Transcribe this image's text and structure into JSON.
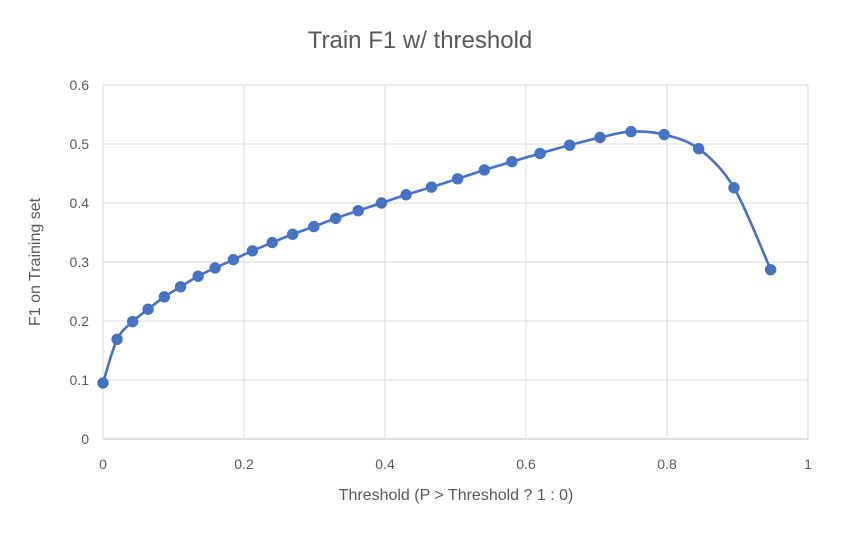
{
  "chart_data": {
    "type": "line",
    "title": "Train F1 w/ threshold",
    "xlabel": "Threshold (P > Threshold ? 1 : 0)",
    "ylabel": "F1 on Training set",
    "xlim": [
      0,
      1
    ],
    "ylim": [
      0,
      0.6
    ],
    "xticks": [
      "0",
      "0.2",
      "0.4",
      "0.6",
      "0.8",
      "1"
    ],
    "yticks": [
      "0",
      "0.1",
      "0.2",
      "0.3",
      "0.4",
      "0.5",
      "0.6"
    ],
    "grid": true,
    "legend": "none",
    "series": [
      {
        "color": "#4472c4",
        "marker": "circle",
        "points": [
          [
            0.0,
            0.095
          ],
          [
            0.02,
            0.169
          ],
          [
            0.042,
            0.199
          ],
          [
            0.064,
            0.22
          ],
          [
            0.087,
            0.241
          ],
          [
            0.11,
            0.258
          ],
          [
            0.135,
            0.276
          ],
          [
            0.159,
            0.29
          ],
          [
            0.185,
            0.304
          ],
          [
            0.212,
            0.319
          ],
          [
            0.24,
            0.333
          ],
          [
            0.269,
            0.347
          ],
          [
            0.299,
            0.36
          ],
          [
            0.33,
            0.374
          ],
          [
            0.362,
            0.387
          ],
          [
            0.395,
            0.4
          ],
          [
            0.43,
            0.414
          ],
          [
            0.466,
            0.427
          ],
          [
            0.503,
            0.441
          ],
          [
            0.541,
            0.456
          ],
          [
            0.58,
            0.47
          ],
          [
            0.62,
            0.484
          ],
          [
            0.662,
            0.498
          ],
          [
            0.705,
            0.511
          ],
          [
            0.749,
            0.521
          ],
          [
            0.796,
            0.516
          ],
          [
            0.845,
            0.492
          ],
          [
            0.895,
            0.426
          ],
          [
            0.947,
            0.287
          ]
        ]
      }
    ]
  }
}
